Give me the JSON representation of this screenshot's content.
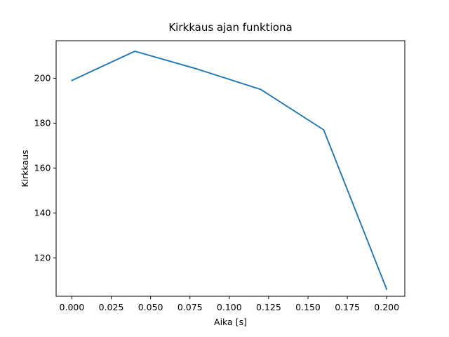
{
  "figure": {
    "background": "#ffffff",
    "axes_color": "#000000"
  },
  "chart_data": {
    "type": "line",
    "title": "Kirkkaus ajan funktiona",
    "xlabel": "Aika [s]",
    "ylabel": "Kirkkaus",
    "x": [
      0.0,
      0.04,
      0.08,
      0.12,
      0.16,
      0.2
    ],
    "y": [
      199,
      212,
      204,
      195,
      177,
      106
    ],
    "series_name": "kirkkaus",
    "line_color": "#1f77b4",
    "xlim": [
      -0.01,
      0.2115
    ],
    "ylim": [
      102.9,
      216.7
    ],
    "xticks": [
      0.0,
      0.025,
      0.05,
      0.075,
      0.1,
      0.125,
      0.15,
      0.175,
      0.2
    ],
    "xtick_labels": [
      "0.000",
      "0.025",
      "0.050",
      "0.075",
      "0.100",
      "0.125",
      "0.150",
      "0.175",
      "0.200"
    ],
    "yticks": [
      120,
      140,
      160,
      180,
      200
    ],
    "ytick_labels": [
      "120",
      "140",
      "160",
      "180",
      "200"
    ],
    "grid": false,
    "legend": null,
    "markers": false
  }
}
